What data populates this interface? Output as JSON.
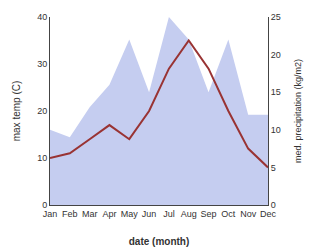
{
  "chart_data": {
    "type": "line",
    "xlabel": "date (month)",
    "ylabel": "max temp (C)",
    "y2label": "med. precipitation (kg/m2)",
    "categories": [
      "Jan",
      "Feb",
      "Mar",
      "Apr",
      "May",
      "Jun",
      "Jul",
      "Aug",
      "Sep",
      "Oct",
      "Nov",
      "Dec"
    ],
    "series": [
      {
        "type": "area",
        "axis": "y2",
        "color": "#c5cdf0",
        "values": [
          10.0,
          9.0,
          13.0,
          16.0,
          22.0,
          15.0,
          25.0,
          22.0,
          15.0,
          22.0,
          12.0,
          12.0
        ]
      },
      {
        "type": "line",
        "color": "#993333",
        "values": [
          10.0,
          11.0,
          14.0,
          17.0,
          14.0,
          20.0,
          29.0,
          35.0,
          29.0,
          20.0,
          12.0,
          8.0
        ]
      }
    ],
    "ylim": [
      0,
      40
    ],
    "yticks": [
      0,
      10,
      20,
      30,
      40
    ],
    "y2lim": [
      0,
      25
    ],
    "y2ticks": [
      0,
      5,
      10,
      15,
      20,
      25
    ],
    "grid": false
  }
}
